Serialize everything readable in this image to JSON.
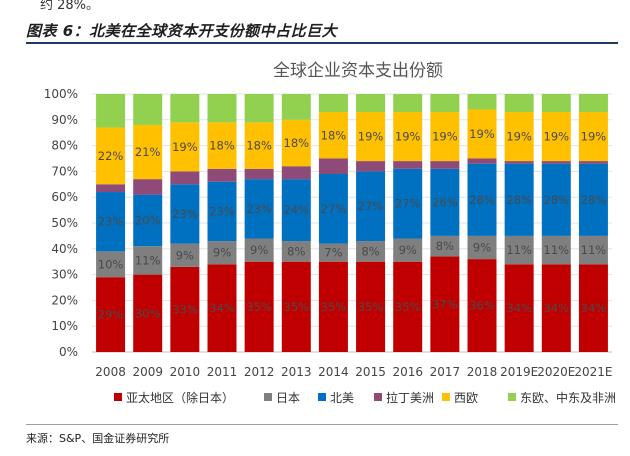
{
  "header": {
    "top_fragment": "约 28%。",
    "figure_title": "图表 6：北美在全球资本开支份额中占比巨大"
  },
  "footer": {
    "source": "来源：S&P、国金证券研究所"
  },
  "colors": {
    "asia_pacific": "#c00000",
    "japan": "#7f7f7f",
    "north_america": "#0070c0",
    "latin_america": "#8e4a79",
    "western_europe": "#ffc000",
    "emea": "#92d050"
  },
  "chart_data": {
    "type": "bar",
    "stacked": true,
    "percent": true,
    "title": "全球企业资本支出份额",
    "categories": [
      "2008",
      "2009",
      "2010",
      "2011",
      "2012",
      "2013",
      "2014",
      "2015",
      "2016",
      "2017",
      "2018",
      "2019E",
      "2020E",
      "2021E"
    ],
    "yticks": [
      "0%",
      "10%",
      "20%",
      "30%",
      "40%",
      "50%",
      "60%",
      "70%",
      "80%",
      "90%",
      "100%"
    ],
    "ylim": [
      0,
      100
    ],
    "legend_position": "bottom",
    "series": [
      {
        "name": "亚太地区（除日本）",
        "values": [
          29,
          30,
          33,
          34,
          35,
          35,
          35,
          35,
          35,
          37,
          36,
          34,
          34,
          34
        ],
        "labels": [
          "29%",
          "30%",
          "33%",
          "34%",
          "35%",
          "35%",
          "35%",
          "35%",
          "35%",
          "37%",
          "36%",
          "34%",
          "34%",
          "34%"
        ]
      },
      {
        "name": "日本",
        "values": [
          10,
          11,
          9,
          9,
          9,
          8,
          7,
          8,
          9,
          8,
          9,
          11,
          11,
          11
        ],
        "labels": [
          "10%",
          "11%",
          "9%",
          "9%",
          "9%",
          "8%",
          "7%",
          "8%",
          "9%",
          "8%",
          "9%",
          "11%",
          "11%",
          "11%"
        ]
      },
      {
        "name": "北美",
        "values": [
          23,
          20,
          23,
          23,
          23,
          24,
          27,
          27,
          27,
          26,
          28,
          28,
          28,
          28
        ],
        "labels": [
          "23%",
          "20%",
          "23%",
          "23%",
          "23%",
          "24%",
          "27%",
          "27%",
          "27%",
          "26%",
          "28%",
          "28%",
          "28%",
          "28%"
        ]
      },
      {
        "name": "拉丁美洲",
        "values": [
          3,
          6,
          5,
          5,
          4,
          5,
          6,
          4,
          3,
          3,
          2,
          1,
          1,
          1
        ],
        "labels": [
          null,
          null,
          null,
          null,
          null,
          null,
          null,
          null,
          null,
          null,
          null,
          null,
          null,
          null
        ]
      },
      {
        "name": "西欧",
        "values": [
          22,
          21,
          19,
          18,
          18,
          18,
          18,
          19,
          19,
          19,
          19,
          19,
          19,
          19
        ],
        "labels": [
          "22%",
          "21%",
          "19%",
          "18%",
          "18%",
          "18%",
          "18%",
          "19%",
          "19%",
          "19%",
          "19%",
          "19%",
          "19%",
          "19%"
        ]
      },
      {
        "name": "东欧、中东及非洲",
        "values": [
          13,
          12,
          11,
          11,
          11,
          10,
          7,
          7,
          7,
          7,
          6,
          7,
          7,
          7
        ],
        "labels": [
          null,
          null,
          null,
          null,
          null,
          null,
          null,
          null,
          null,
          null,
          null,
          null,
          null,
          null
        ]
      }
    ]
  }
}
